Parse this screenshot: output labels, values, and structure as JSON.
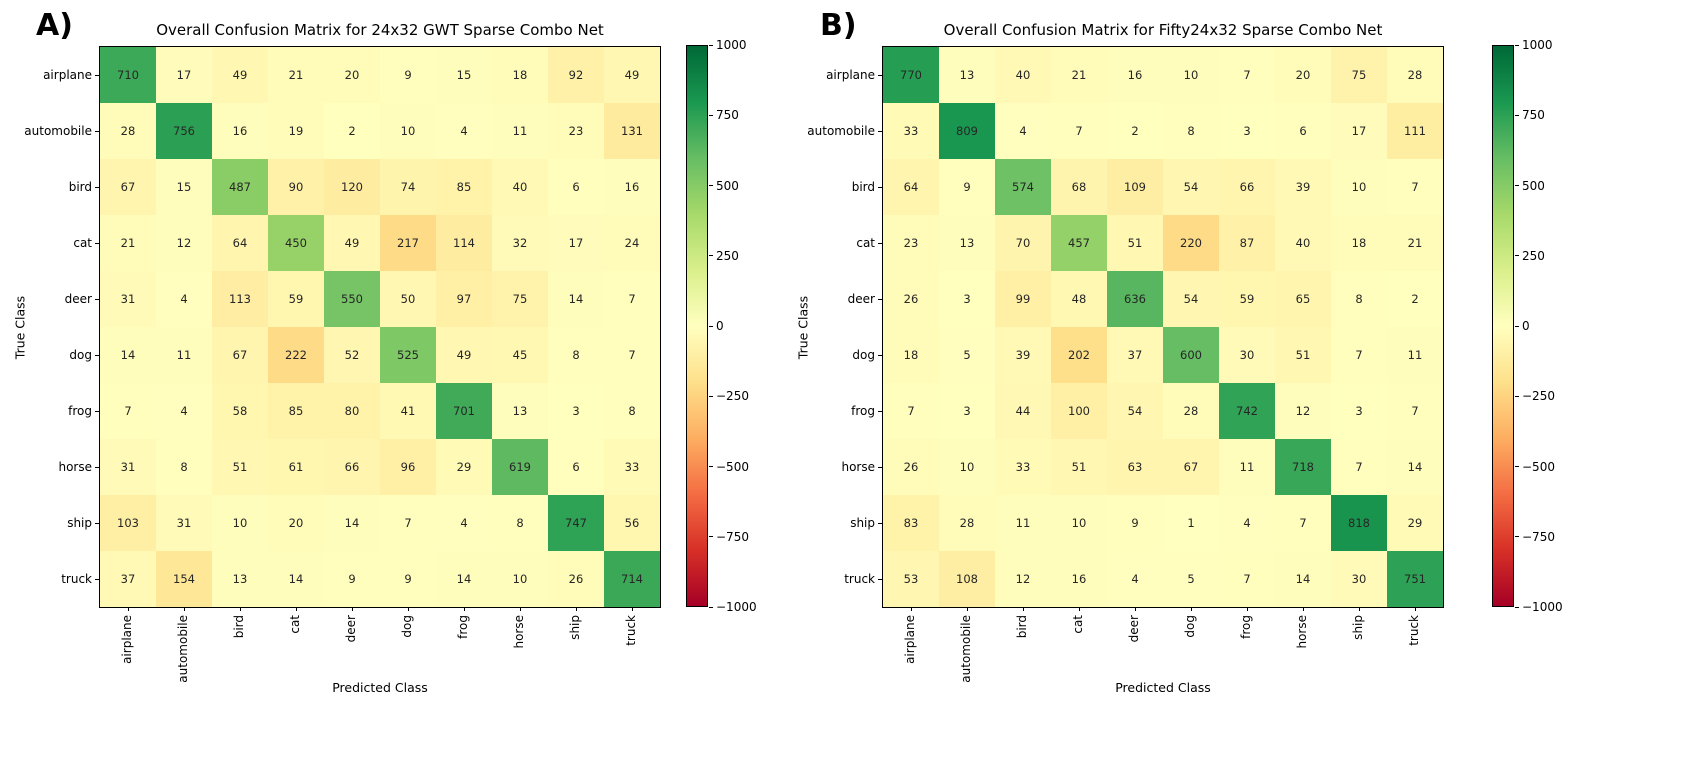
{
  "chart_data": [
    {
      "type": "heatmap",
      "panel_label": "A)",
      "title": "Overall Confusion Matrix for 24x32 GWT Sparse Combo Net",
      "xlabel": "Predicted Class",
      "ylabel": "True Class",
      "x_categories": [
        "airplane",
        "automobile",
        "bird",
        "cat",
        "deer",
        "dog",
        "frog",
        "horse",
        "ship",
        "truck"
      ],
      "y_categories": [
        "airplane",
        "automobile",
        "bird",
        "cat",
        "deer",
        "dog",
        "frog",
        "horse",
        "ship",
        "truck"
      ],
      "matrix": [
        [
          710,
          17,
          49,
          21,
          20,
          9,
          15,
          18,
          92,
          49
        ],
        [
          28,
          756,
          16,
          19,
          2,
          10,
          4,
          11,
          23,
          131
        ],
        [
          67,
          15,
          487,
          90,
          120,
          74,
          85,
          40,
          6,
          16
        ],
        [
          21,
          12,
          64,
          450,
          49,
          217,
          114,
          32,
          17,
          24
        ],
        [
          31,
          4,
          113,
          59,
          550,
          50,
          97,
          75,
          14,
          7
        ],
        [
          14,
          11,
          67,
          222,
          52,
          525,
          49,
          45,
          8,
          7
        ],
        [
          7,
          4,
          58,
          85,
          80,
          41,
          701,
          13,
          3,
          8
        ],
        [
          31,
          8,
          51,
          61,
          66,
          96,
          29,
          619,
          6,
          33
        ],
        [
          103,
          31,
          10,
          20,
          14,
          7,
          4,
          8,
          747,
          56
        ],
        [
          37,
          154,
          13,
          14,
          9,
          9,
          14,
          10,
          26,
          714
        ]
      ],
      "colorbar": {
        "colormap": "RdYlGn",
        "vmin": -1000,
        "vmax": 1000,
        "off_diagonal_negated": true,
        "tick_labels": [
          "1000",
          "750",
          "500",
          "250",
          "0",
          "−250",
          "−500",
          "−750",
          "−1000"
        ]
      },
      "legend_position": "right-colorbar",
      "grid": false
    },
    {
      "type": "heatmap",
      "panel_label": "B)",
      "title": "Overall Confusion Matrix for Fifty24x32 Sparse Combo Net",
      "xlabel": "Predicted Class",
      "ylabel": "True Class",
      "x_categories": [
        "airplane",
        "automobile",
        "bird",
        "cat",
        "deer",
        "dog",
        "frog",
        "horse",
        "ship",
        "truck"
      ],
      "y_categories": [
        "airplane",
        "automobile",
        "bird",
        "cat",
        "deer",
        "dog",
        "frog",
        "horse",
        "ship",
        "truck"
      ],
      "matrix": [
        [
          770,
          13,
          40,
          21,
          16,
          10,
          7,
          20,
          75,
          28
        ],
        [
          33,
          809,
          4,
          7,
          2,
          8,
          3,
          6,
          17,
          111
        ],
        [
          64,
          9,
          574,
          68,
          109,
          54,
          66,
          39,
          10,
          7
        ],
        [
          23,
          13,
          70,
          457,
          51,
          220,
          87,
          40,
          18,
          21
        ],
        [
          26,
          3,
          99,
          48,
          636,
          54,
          59,
          65,
          8,
          2
        ],
        [
          18,
          5,
          39,
          202,
          37,
          600,
          30,
          51,
          7,
          11
        ],
        [
          7,
          3,
          44,
          100,
          54,
          28,
          742,
          12,
          3,
          7
        ],
        [
          26,
          10,
          33,
          51,
          63,
          67,
          11,
          718,
          7,
          14
        ],
        [
          83,
          28,
          11,
          10,
          9,
          1,
          4,
          7,
          818,
          29
        ],
        [
          53,
          108,
          12,
          16,
          4,
          5,
          7,
          14,
          30,
          751
        ]
      ],
      "colorbar": {
        "colormap": "RdYlGn",
        "vmin": -1000,
        "vmax": 1000,
        "off_diagonal_negated": true,
        "tick_labels": [
          "1000",
          "750",
          "500",
          "250",
          "0",
          "−250",
          "−500",
          "−750",
          "−1000"
        ]
      },
      "legend_position": "right-colorbar",
      "grid": false
    }
  ]
}
